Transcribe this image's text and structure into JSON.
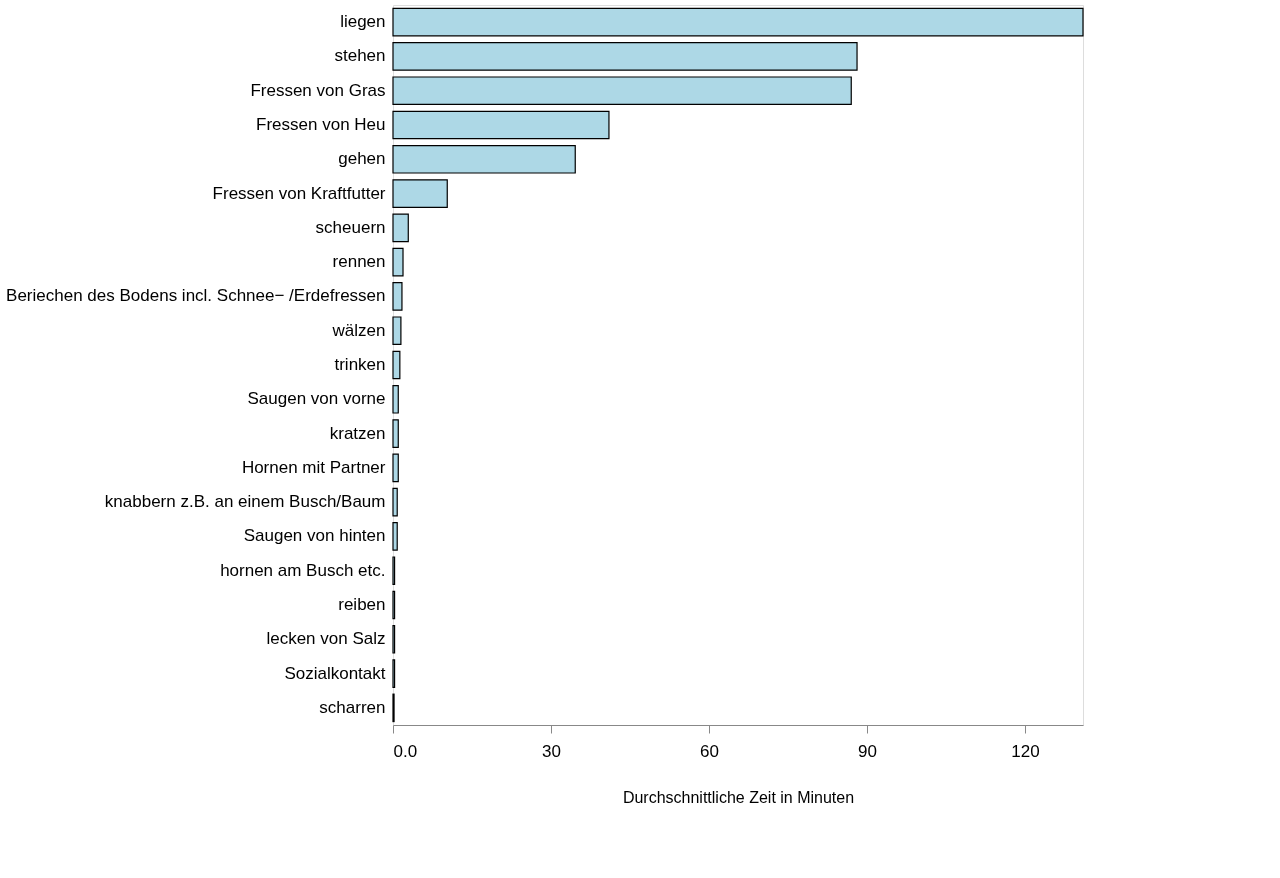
{
  "chart_data": {
    "type": "bar",
    "orientation": "horizontal",
    "xlabel": "Durchschnittliche Zeit in Minuten",
    "categories": [
      "liegen",
      "stehen",
      "Fressen von Gras",
      "Fressen von Heu",
      "gehen",
      "Fressen von Kraftfutter",
      "scheuern",
      "rennen",
      "Beriechen des Bodens incl. Schnee− /Erdefressen",
      "wälzen",
      "trinken",
      "Saugen von vorne",
      "kratzen",
      "Hornen mit Partner",
      "knabbern z.B. an einem Busch/Baum",
      "Saugen von hinten",
      "hornen am Busch etc.",
      "reiben",
      "lecken von Salz",
      "Sozialkontakt",
      "scharren"
    ],
    "values": [
      131,
      88.1,
      87,
      41,
      34.6,
      10.3,
      2.9,
      1.9,
      1.7,
      1.5,
      1.3,
      1,
      1,
      1,
      0.8,
      0.8,
      0.3,
      0.3,
      0.3,
      0.3,
      0.2
    ],
    "color": "#add8e6",
    "xlim": [
      0,
      131
    ],
    "xticks": [
      {
        "value": 0,
        "label": "0.0"
      },
      30,
      60,
      90,
      120
    ],
    "grid": false
  }
}
